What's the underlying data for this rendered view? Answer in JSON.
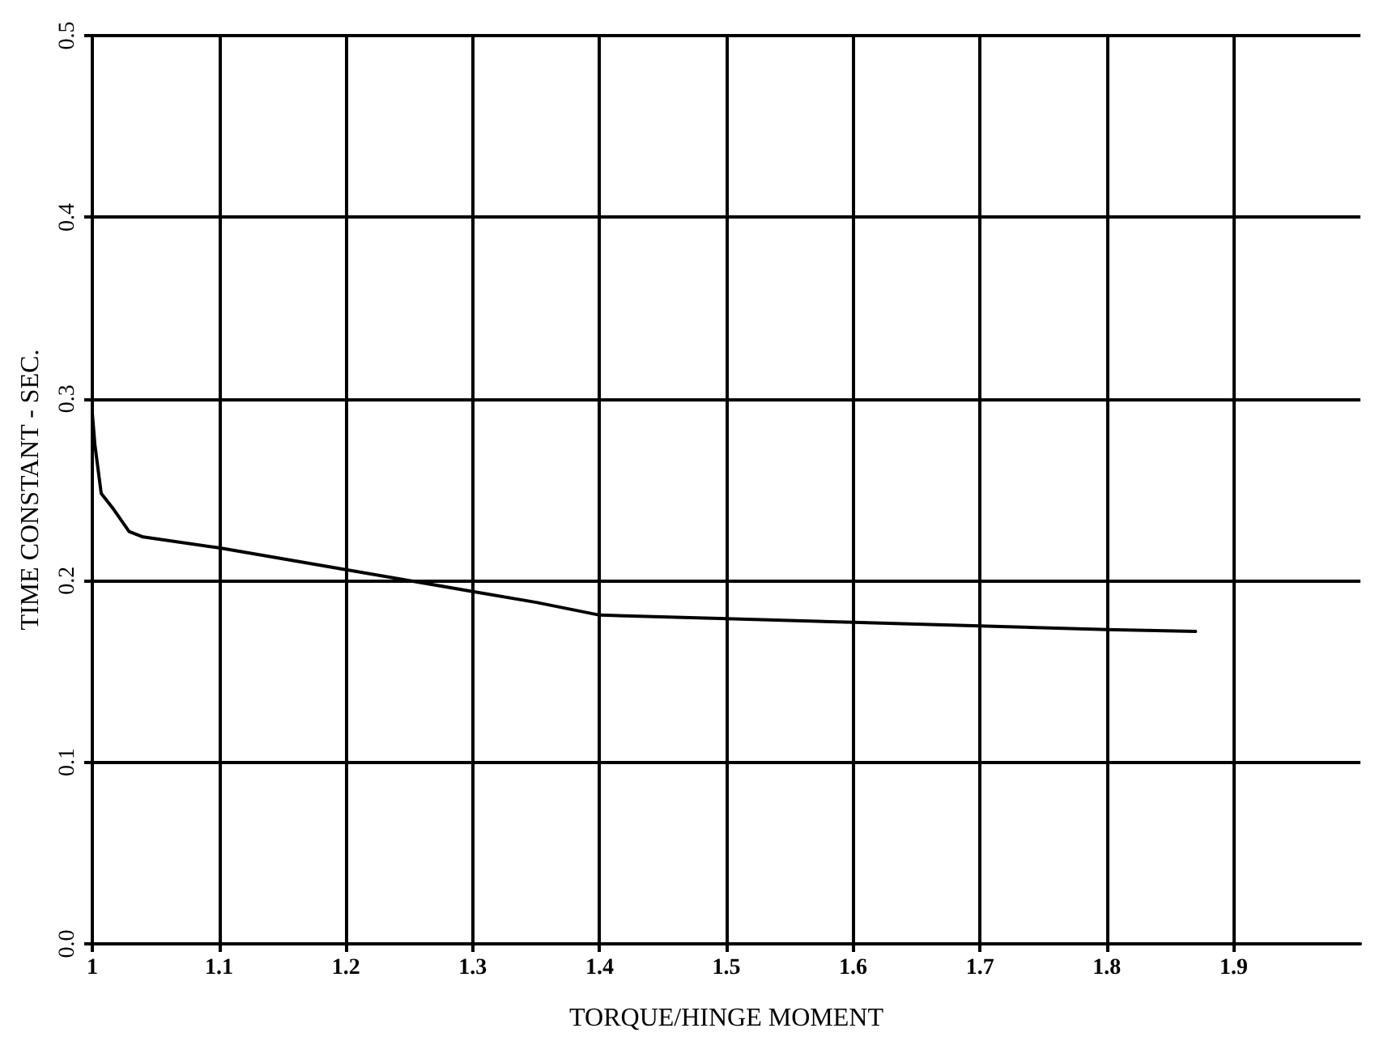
{
  "chart_data": {
    "type": "line",
    "xlabel": "TORQUE/HINGE MOMENT",
    "ylabel": "TIME CONSTANT - SEC.",
    "x": [
      1.0,
      1.002,
      1.007,
      1.016,
      1.029,
      1.04,
      1.1,
      1.2,
      1.3,
      1.35,
      1.4,
      1.5,
      1.6,
      1.7,
      1.8,
      1.87
    ],
    "series": [
      {
        "color": "#000000",
        "values": [
          0.292,
          0.275,
          0.248,
          0.24,
          0.227,
          0.224,
          0.218,
          0.206,
          0.194,
          0.188,
          0.181,
          0.179,
          0.177,
          0.175,
          0.173,
          0.172
        ]
      }
    ],
    "xlim": [
      1,
      2
    ],
    "xticks": [
      1,
      1.1,
      1.2,
      1.3,
      1.4,
      1.5,
      1.6,
      1.7,
      1.8,
      1.9
    ],
    "ylim": [
      0,
      0.5
    ],
    "yticks": [
      {
        "value": 0,
        "label": "0.0"
      },
      0.1,
      0.2,
      0.3,
      0.4,
      0.5
    ],
    "grid": true,
    "marker": "none",
    "line_style": "solid"
  }
}
